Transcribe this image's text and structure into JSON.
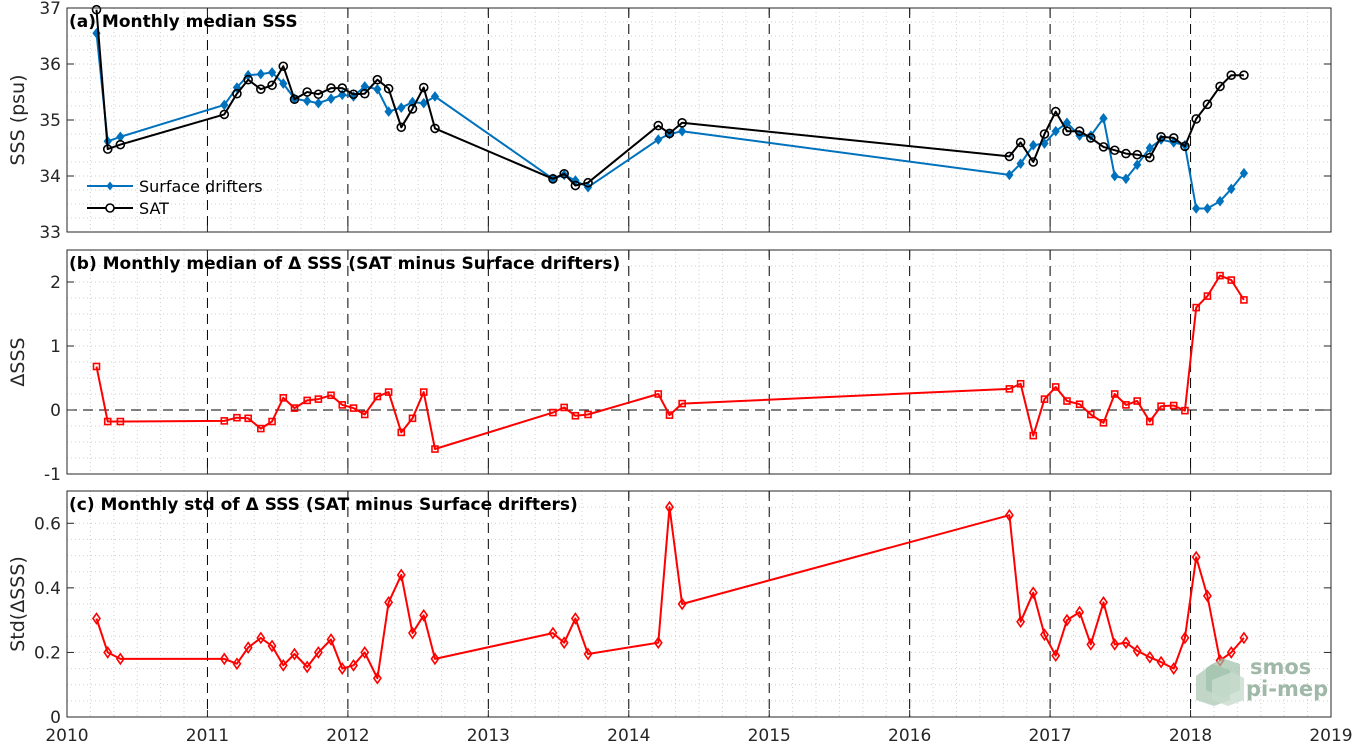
{
  "chart_data": [
    {
      "type": "line",
      "panel": "a",
      "title": "(a) Monthly median SSS",
      "ylabel": "SSS (psu)",
      "xlim": [
        2010,
        2019
      ],
      "ylim": [
        33,
        37
      ],
      "yticks": [
        33,
        34,
        35,
        36,
        37
      ],
      "legend_position": "bottom-left",
      "series": [
        {
          "name": "Surface drifters",
          "color": "#0072BD",
          "marker": "diamond-filled",
          "points": [
            [
              2010.21,
              36.55
            ],
            [
              2010.29,
              34.62
            ],
            [
              2010.38,
              34.7
            ],
            [
              2011.12,
              35.27
            ],
            [
              2011.21,
              35.58
            ],
            [
              2011.29,
              35.8
            ],
            [
              2011.38,
              35.82
            ],
            [
              2011.46,
              35.85
            ],
            [
              2011.54,
              35.65
            ],
            [
              2011.62,
              35.38
            ],
            [
              2011.71,
              35.34
            ],
            [
              2011.79,
              35.3
            ],
            [
              2011.88,
              35.38
            ],
            [
              2011.96,
              35.45
            ],
            [
              2012.04,
              35.42
            ],
            [
              2012.12,
              35.6
            ],
            [
              2012.21,
              35.55
            ],
            [
              2012.29,
              35.15
            ],
            [
              2012.38,
              35.22
            ],
            [
              2012.46,
              35.32
            ],
            [
              2012.54,
              35.3
            ],
            [
              2012.62,
              35.42
            ],
            [
              2013.46,
              33.95
            ],
            [
              2013.54,
              34.02
            ],
            [
              2013.62,
              33.92
            ],
            [
              2013.71,
              33.8
            ],
            [
              2014.21,
              34.65
            ],
            [
              2014.29,
              34.75
            ],
            [
              2014.38,
              34.8
            ],
            [
              2016.71,
              34.02
            ],
            [
              2016.79,
              34.22
            ],
            [
              2016.88,
              34.55
            ],
            [
              2016.96,
              34.58
            ],
            [
              2017.04,
              34.8
            ],
            [
              2017.12,
              34.95
            ],
            [
              2017.21,
              34.72
            ],
            [
              2017.29,
              34.72
            ],
            [
              2017.38,
              35.03
            ],
            [
              2017.46,
              34.0
            ],
            [
              2017.54,
              33.95
            ],
            [
              2017.62,
              34.2
            ],
            [
              2017.71,
              34.5
            ],
            [
              2017.79,
              34.65
            ],
            [
              2017.88,
              34.6
            ],
            [
              2017.96,
              34.55
            ],
            [
              2018.04,
              33.42
            ],
            [
              2018.12,
              33.42
            ],
            [
              2018.21,
              33.55
            ],
            [
              2018.29,
              33.77
            ],
            [
              2018.38,
              34.05
            ]
          ]
        },
        {
          "name": "SAT",
          "color": "#000000",
          "marker": "circle-open",
          "points": [
            [
              2010.21,
              36.97
            ],
            [
              2010.29,
              34.48
            ],
            [
              2010.38,
              34.56
            ],
            [
              2011.12,
              35.1
            ],
            [
              2011.21,
              35.47
            ],
            [
              2011.29,
              35.72
            ],
            [
              2011.38,
              35.55
            ],
            [
              2011.46,
              35.62
            ],
            [
              2011.54,
              35.96
            ],
            [
              2011.62,
              35.37
            ],
            [
              2011.71,
              35.5
            ],
            [
              2011.79,
              35.46
            ],
            [
              2011.88,
              35.57
            ],
            [
              2011.96,
              35.57
            ],
            [
              2012.04,
              35.46
            ],
            [
              2012.12,
              35.47
            ],
            [
              2012.21,
              35.72
            ],
            [
              2012.29,
              35.56
            ],
            [
              2012.38,
              34.87
            ],
            [
              2012.46,
              35.2
            ],
            [
              2012.54,
              35.58
            ],
            [
              2012.62,
              34.85
            ],
            [
              2013.46,
              33.95
            ],
            [
              2013.54,
              34.04
            ],
            [
              2013.62,
              33.83
            ],
            [
              2013.71,
              33.88
            ],
            [
              2014.21,
              34.9
            ],
            [
              2014.29,
              34.76
            ],
            [
              2014.38,
              34.95
            ],
            [
              2016.71,
              34.35
            ],
            [
              2016.79,
              34.6
            ],
            [
              2016.88,
              34.25
            ],
            [
              2016.96,
              34.75
            ],
            [
              2017.04,
              35.15
            ],
            [
              2017.12,
              34.8
            ],
            [
              2017.21,
              34.8
            ],
            [
              2017.29,
              34.68
            ],
            [
              2017.38,
              34.52
            ],
            [
              2017.46,
              34.46
            ],
            [
              2017.54,
              34.4
            ],
            [
              2017.62,
              34.38
            ],
            [
              2017.71,
              34.33
            ],
            [
              2017.79,
              34.7
            ],
            [
              2017.88,
              34.68
            ],
            [
              2017.96,
              34.53
            ],
            [
              2018.04,
              35.02
            ],
            [
              2018.12,
              35.28
            ],
            [
              2018.21,
              35.6
            ],
            [
              2018.29,
              35.8
            ],
            [
              2018.38,
              35.8
            ]
          ]
        }
      ]
    },
    {
      "type": "line",
      "panel": "b",
      "title": "(b) Monthly median of Δ SSS (SAT minus Surface drifters)",
      "ylabel": "ΔSSS",
      "xlim": [
        2010,
        2019
      ],
      "ylim": [
        -1,
        2.5
      ],
      "yticks": [
        -1,
        0,
        1,
        2
      ],
      "zero_line": true,
      "series": [
        {
          "color": "#FF0000",
          "marker": "square-open",
          "points": [
            [
              2010.21,
              0.68
            ],
            [
              2010.29,
              -0.18
            ],
            [
              2010.38,
              -0.18
            ],
            [
              2011.12,
              -0.17
            ],
            [
              2011.21,
              -0.12
            ],
            [
              2011.29,
              -0.13
            ],
            [
              2011.38,
              -0.29
            ],
            [
              2011.46,
              -0.18
            ],
            [
              2011.54,
              0.19
            ],
            [
              2011.62,
              0.03
            ],
            [
              2011.71,
              0.15
            ],
            [
              2011.79,
              0.17
            ],
            [
              2011.88,
              0.23
            ],
            [
              2011.96,
              0.08
            ],
            [
              2012.04,
              0.03
            ],
            [
              2012.12,
              -0.07
            ],
            [
              2012.21,
              0.21
            ],
            [
              2012.29,
              0.28
            ],
            [
              2012.38,
              -0.35
            ],
            [
              2012.46,
              -0.13
            ],
            [
              2012.54,
              0.28
            ],
            [
              2012.62,
              -0.61
            ],
            [
              2013.46,
              -0.04
            ],
            [
              2013.54,
              0.04
            ],
            [
              2013.62,
              -0.09
            ],
            [
              2013.71,
              -0.07
            ],
            [
              2014.21,
              0.25
            ],
            [
              2014.29,
              -0.08
            ],
            [
              2014.38,
              0.1
            ],
            [
              2016.71,
              0.33
            ],
            [
              2016.79,
              0.41
            ],
            [
              2016.88,
              -0.4
            ],
            [
              2016.96,
              0.17
            ],
            [
              2017.04,
              0.36
            ],
            [
              2017.12,
              0.14
            ],
            [
              2017.21,
              0.09
            ],
            [
              2017.29,
              -0.07
            ],
            [
              2017.38,
              -0.2
            ],
            [
              2017.46,
              0.25
            ],
            [
              2017.54,
              0.08
            ],
            [
              2017.62,
              0.14
            ],
            [
              2017.71,
              -0.18
            ],
            [
              2017.79,
              0.06
            ],
            [
              2017.88,
              0.07
            ],
            [
              2017.96,
              -0.01
            ],
            [
              2018.04,
              1.6
            ],
            [
              2018.12,
              1.78
            ],
            [
              2018.21,
              2.1
            ],
            [
              2018.29,
              2.03
            ],
            [
              2018.38,
              1.72
            ]
          ]
        }
      ]
    },
    {
      "type": "line",
      "panel": "c",
      "title": "(c) Monthly std of Δ SSS (SAT minus Surface drifters)",
      "ylabel": "Std(ΔSSS)",
      "xlim": [
        2010,
        2019
      ],
      "ylim": [
        0,
        0.7
      ],
      "yticks": [
        0,
        0.2,
        0.4,
        0.6
      ],
      "xticks": [
        2010,
        2011,
        2012,
        2013,
        2014,
        2015,
        2016,
        2017,
        2018,
        2019
      ],
      "series": [
        {
          "color": "#FF0000",
          "marker": "diamond-open",
          "points": [
            [
              2010.21,
              0.305
            ],
            [
              2010.29,
              0.2
            ],
            [
              2010.38,
              0.18
            ],
            [
              2011.12,
              0.18
            ],
            [
              2011.21,
              0.165
            ],
            [
              2011.29,
              0.215
            ],
            [
              2011.38,
              0.245
            ],
            [
              2011.46,
              0.22
            ],
            [
              2011.54,
              0.16
            ],
            [
              2011.62,
              0.195
            ],
            [
              2011.71,
              0.155
            ],
            [
              2011.79,
              0.2
            ],
            [
              2011.88,
              0.24
            ],
            [
              2011.96,
              0.15
            ],
            [
              2012.04,
              0.16
            ],
            [
              2012.12,
              0.2
            ],
            [
              2012.21,
              0.12
            ],
            [
              2012.29,
              0.355
            ],
            [
              2012.38,
              0.44
            ],
            [
              2012.46,
              0.26
            ],
            [
              2012.54,
              0.315
            ],
            [
              2012.62,
              0.18
            ],
            [
              2013.46,
              0.26
            ],
            [
              2013.54,
              0.23
            ],
            [
              2013.62,
              0.305
            ],
            [
              2013.71,
              0.195
            ],
            [
              2014.21,
              0.23
            ],
            [
              2014.29,
              0.65
            ],
            [
              2014.38,
              0.35
            ],
            [
              2016.71,
              0.625
            ],
            [
              2016.79,
              0.295
            ],
            [
              2016.88,
              0.385
            ],
            [
              2016.96,
              0.255
            ],
            [
              2017.04,
              0.19
            ],
            [
              2017.12,
              0.3
            ],
            [
              2017.21,
              0.325
            ],
            [
              2017.29,
              0.225
            ],
            [
              2017.38,
              0.355
            ],
            [
              2017.46,
              0.225
            ],
            [
              2017.54,
              0.23
            ],
            [
              2017.62,
              0.205
            ],
            [
              2017.71,
              0.185
            ],
            [
              2017.79,
              0.17
            ],
            [
              2017.88,
              0.15
            ],
            [
              2017.96,
              0.245
            ],
            [
              2018.04,
              0.495
            ],
            [
              2018.12,
              0.375
            ],
            [
              2018.21,
              0.175
            ],
            [
              2018.29,
              0.2
            ],
            [
              2018.38,
              0.245
            ]
          ]
        }
      ]
    }
  ],
  "logo": {
    "line1": "smos",
    "line2": "pi-mep"
  }
}
